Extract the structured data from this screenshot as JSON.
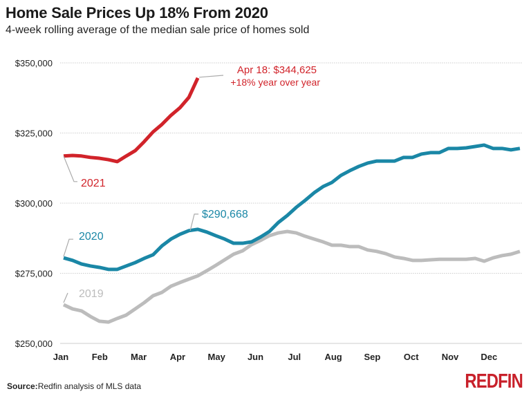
{
  "colors": {
    "y2021": "#d1232a",
    "y2020": "#1a87a6",
    "y2019": "#bcbcbc",
    "grid": "#cccccc",
    "brand": "#c8202a"
  },
  "chart_data": {
    "type": "line",
    "title": "Home Sale Prices Up 18% From 2020",
    "subtitle": "4-week rolling average of the median sale price of homes sold",
    "xlabel": "",
    "ylabel": "",
    "x_unit": "week of year",
    "x_tick_labels": [
      "Jan",
      "Feb",
      "Mar",
      "Apr",
      "May",
      "Jun",
      "Jul",
      "Aug",
      "Sep",
      "Oct",
      "Nov",
      "Dec"
    ],
    "y_ticks": [
      250000,
      275000,
      300000,
      325000,
      350000
    ],
    "y_tick_labels": [
      "$250,000",
      "$275,000",
      "$300,000",
      "$325,000",
      "$350,000"
    ],
    "ylim": [
      250000,
      350000
    ],
    "grid": "horizontal dotted",
    "series": [
      {
        "name": "2019",
        "color_key": "y2019",
        "values": [
          263800,
          262300,
          261600,
          259600,
          257900,
          257600,
          258900,
          260100,
          262300,
          264500,
          267000,
          268200,
          270400,
          271700,
          272900,
          274100,
          275900,
          277800,
          279800,
          281800,
          283000,
          285200,
          286700,
          288400,
          289400,
          289900,
          289400,
          288200,
          287200,
          286200,
          285000,
          285000,
          284500,
          284500,
          283300,
          282800,
          282000,
          280800,
          280300,
          279600,
          279600,
          279800,
          280000,
          280000,
          280000,
          280000,
          280300,
          279300,
          280500,
          281300,
          281800,
          282800
        ]
      },
      {
        "name": "2020",
        "color_key": "y2020",
        "values": [
          280500,
          279600,
          278300,
          277600,
          277100,
          276400,
          276400,
          277600,
          278800,
          280300,
          281600,
          284800,
          287200,
          288900,
          290200,
          290668,
          289700,
          288400,
          287200,
          285700,
          285700,
          286200,
          287900,
          289900,
          293100,
          295600,
          298500,
          301000,
          303700,
          305900,
          307400,
          309900,
          311600,
          313100,
          314300,
          315000,
          315000,
          315000,
          316300,
          316300,
          317500,
          318000,
          318000,
          319500,
          319500,
          319700,
          320200,
          320700,
          319500,
          319500,
          319000,
          319500
        ]
      },
      {
        "name": "2021",
        "color_key": "y2021",
        "values": [
          316800,
          317000,
          316800,
          316300,
          316000,
          315500,
          314800,
          316800,
          318700,
          321900,
          325400,
          328100,
          331300,
          334000,
          337700,
          344625
        ]
      }
    ],
    "annotations": [
      {
        "series": "2021",
        "line1": "Apr 18: $344,625",
        "line2": "+18% year over year"
      },
      {
        "series": "2020",
        "text": "$290,668"
      }
    ]
  },
  "footer": {
    "source_label": "Source:",
    "source_text": "Redfin analysis of MLS data",
    "logo": "REDFIN"
  }
}
